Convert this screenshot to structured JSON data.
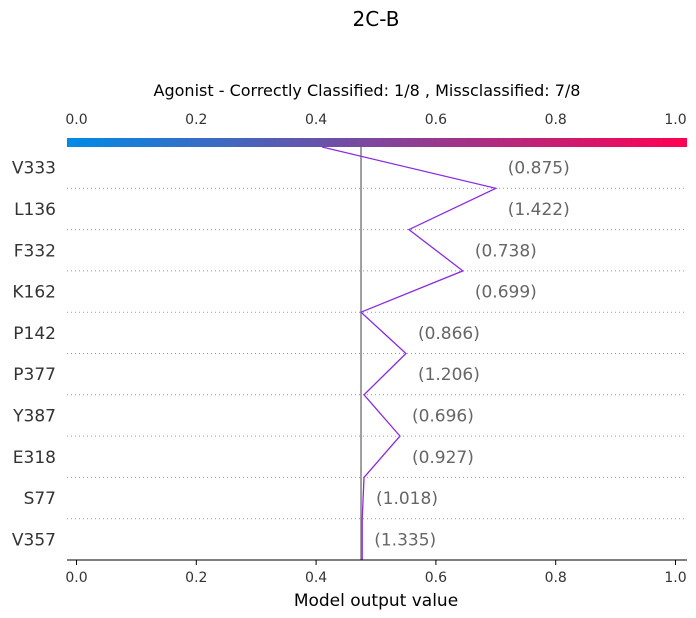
{
  "chart_data": {
    "type": "line",
    "title": "2C-B",
    "subtitle": "Agonist - Correctly Classified: 1/8 , Missclassified: 7/8",
    "xlabel": "Model output value",
    "xlim": [
      0.0,
      1.0
    ],
    "x_ticks": [
      "0.0",
      "0.2",
      "0.4",
      "0.6",
      "0.8",
      "1.0"
    ],
    "colorbar": {
      "from": "#008BE6",
      "to": "#FF0052"
    },
    "base_value": 0.475,
    "start_value": 0.41,
    "features": [
      {
        "name": "V333",
        "value": "(0.875)",
        "x": 0.7
      },
      {
        "name": "L136",
        "value": "(1.422)",
        "x": 0.555
      },
      {
        "name": "F332",
        "value": "(0.738)",
        "x": 0.645
      },
      {
        "name": "K162",
        "value": "(0.699)",
        "x": 0.475
      },
      {
        "name": "P142",
        "value": "(0.866)",
        "x": 0.55
      },
      {
        "name": "P377",
        "value": "(1.206)",
        "x": 0.48
      },
      {
        "name": "Y387",
        "value": "(0.696)",
        "x": 0.54
      },
      {
        "name": "E318",
        "value": "(0.927)",
        "x": 0.48
      },
      {
        "name": "S77",
        "value": "(1.018)",
        "x": 0.477
      },
      {
        "name": "V357",
        "value": "(1.335)",
        "x": 0.477
      }
    ],
    "line_color": "#8A2BE2",
    "grid": "dotted rows"
  }
}
